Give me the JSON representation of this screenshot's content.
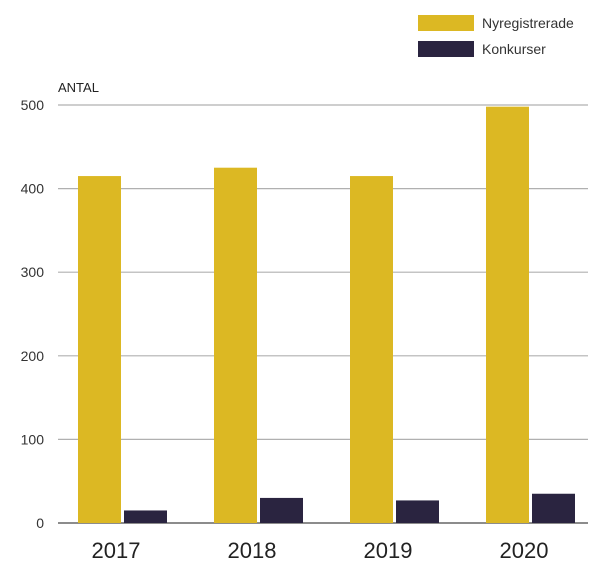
{
  "chart_data": {
    "type": "bar",
    "title": "",
    "xlabel": "",
    "ylabel": "ANTAL",
    "categories": [
      "2017",
      "2018",
      "2019",
      "2020"
    ],
    "series": [
      {
        "name": "Nyregistrerade",
        "color": "#dcb823",
        "values": [
          415,
          425,
          415,
          498
        ]
      },
      {
        "name": "Konkurser",
        "color": "#2a2440",
        "values": [
          15,
          30,
          27,
          35
        ]
      }
    ],
    "ylim": [
      0,
      500
    ],
    "yticks": [
      "0",
      "100",
      "200",
      "300",
      "400",
      "500"
    ],
    "grid": true,
    "legend_position": "top-right"
  }
}
